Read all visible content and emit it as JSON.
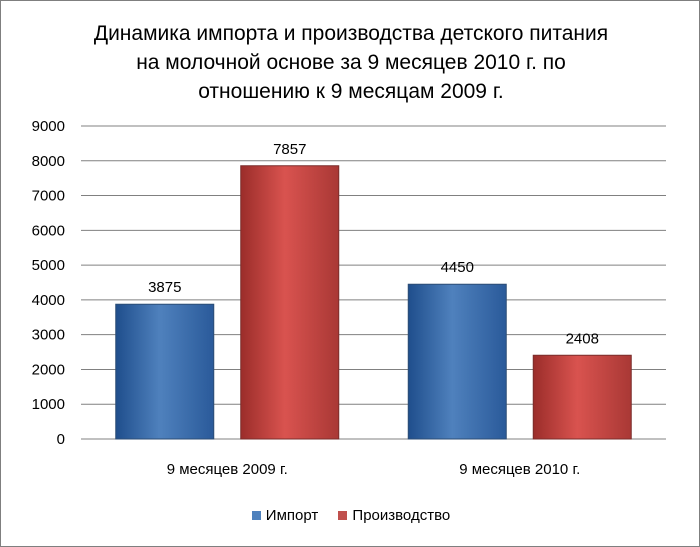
{
  "chart_data": {
    "type": "bar",
    "title_lines": [
      "Динамика импорта и производства детского питания",
      "на молочной основе за 9 месяцев 2010 г. по",
      "отношению к 9 месяцам 2009 г."
    ],
    "categories": [
      "9 месяцев 2009 г.",
      "9 месяцев 2010 г."
    ],
    "series": [
      {
        "name": "Импорт",
        "values": [
          3875,
          4450
        ],
        "color": "#4f81bd"
      },
      {
        "name": "Производство",
        "values": [
          7857,
          2408
        ],
        "color": "#c0504d"
      }
    ],
    "ylim": [
      0,
      9000
    ],
    "y_ticks": [
      0,
      1000,
      2000,
      3000,
      4000,
      5000,
      6000,
      7000,
      8000,
      9000
    ],
    "grid": true,
    "legend_position": "bottom",
    "xlabel": "",
    "ylabel": ""
  }
}
